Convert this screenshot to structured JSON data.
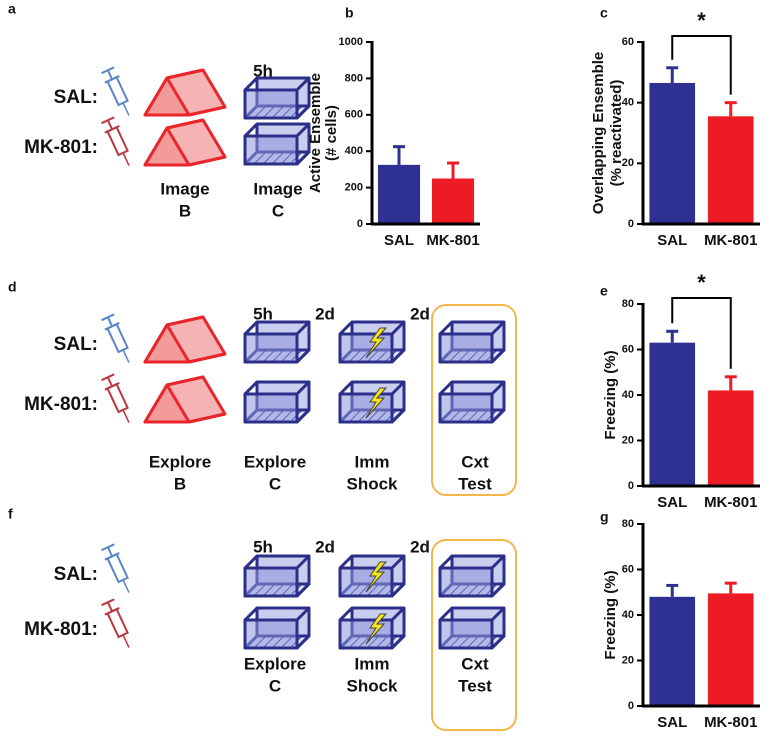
{
  "diagrams": [
    {
      "letter": "a",
      "groups": [
        "SAL:",
        "MK-801:"
      ],
      "intervals": [
        "5h"
      ],
      "labels": [
        [
          "Image",
          "B"
        ],
        [
          "Image",
          "C"
        ]
      ]
    },
    {
      "letter": "d",
      "groups": [
        "SAL:",
        "MK-801:"
      ],
      "intervals": [
        "5h",
        "2d",
        "2d"
      ],
      "labels": [
        [
          "Explore",
          "B"
        ],
        [
          "Explore",
          "C"
        ],
        [
          "Imm",
          "Shock"
        ],
        [
          "Cxt",
          "Test"
        ]
      ]
    },
    {
      "letter": "f",
      "groups": [
        "SAL:",
        "MK-801:"
      ],
      "intervals": [
        "5h",
        "2d",
        "2d"
      ],
      "labels": [
        [
          "Explore",
          "C"
        ],
        [
          "Imm",
          "Shock"
        ],
        [
          "Cxt",
          "Test"
        ]
      ]
    }
  ],
  "chart_data": [
    {
      "type": "bar",
      "letter": "b",
      "ylabel": [
        "Active Ensemble",
        "(# cells)"
      ],
      "categories": [
        "SAL",
        "MK-801"
      ],
      "values": [
        325,
        250
      ],
      "errors": [
        100,
        85
      ],
      "colors": [
        "#2e3192",
        "#ed1c24"
      ],
      "ylim": [
        0,
        1000
      ],
      "yticks": [
        0,
        200,
        400,
        600,
        800,
        1000
      ]
    },
    {
      "type": "bar",
      "letter": "c",
      "ylabel": [
        "Overlapping Ensemble",
        "(% reactivated)"
      ],
      "categories": [
        "SAL",
        "MK-801"
      ],
      "values": [
        46.5,
        35.5
      ],
      "errors": [
        5,
        4.5
      ],
      "colors": [
        "#2e3192",
        "#ed1c24"
      ],
      "ylim": [
        0,
        60
      ],
      "yticks": [
        0,
        20,
        40,
        60
      ],
      "significance": "*"
    },
    {
      "type": "bar",
      "letter": "e",
      "ylabel": [
        "Freezing (%)"
      ],
      "categories": [
        "SAL",
        "MK-801"
      ],
      "values": [
        63,
        42
      ],
      "errors": [
        5,
        6
      ],
      "colors": [
        "#2e3192",
        "#ed1c24"
      ],
      "ylim": [
        0,
        80
      ],
      "yticks": [
        0,
        20,
        40,
        60,
        80
      ],
      "significance": "*"
    },
    {
      "type": "bar",
      "letter": "g",
      "ylabel": [
        "Freezing (%)"
      ],
      "categories": [
        "SAL",
        "MK-801"
      ],
      "values": [
        48,
        49.5
      ],
      "errors": [
        5,
        4.5
      ],
      "colors": [
        "#2e3192",
        "#ed1c24"
      ],
      "ylim": [
        0,
        80
      ],
      "yticks": [
        0,
        20,
        40,
        60,
        80
      ]
    }
  ]
}
